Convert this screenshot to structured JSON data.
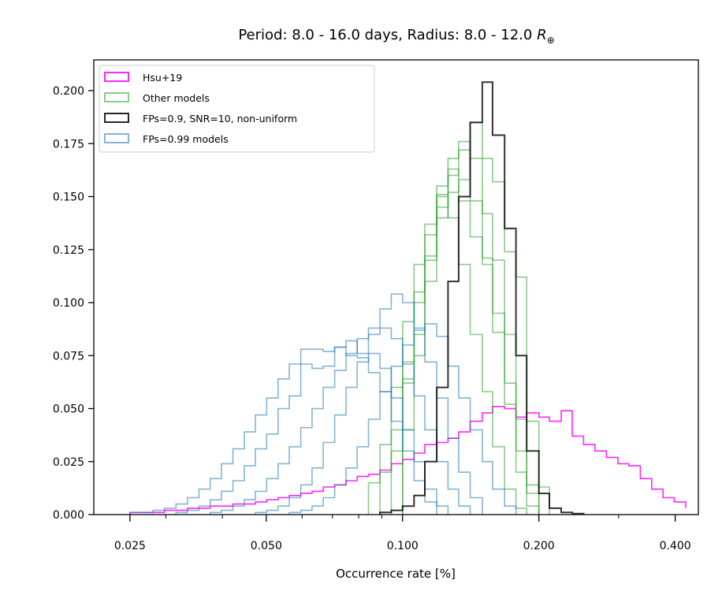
{
  "chart_data": {
    "type": "histogram",
    "title_main": "Period: 8.0 - 16.0 days, Radius: 8.0 - 12.0",
    "title_symbol": "R",
    "title_subscript": "⊕",
    "xlabel": "Occurrence rate [%]",
    "ylabel": "",
    "xscale": "log",
    "xlim": [
      0.0208,
      0.45
    ],
    "ylim": [
      0.0,
      0.2145
    ],
    "xticks": [
      0.025,
      0.05,
      0.1,
      0.2,
      0.4
    ],
    "xtick_labels": [
      "0.025",
      "0.050",
      "0.100",
      "0.200",
      "0.400"
    ],
    "yticks": [
      0.0,
      0.025,
      0.05,
      0.075,
      0.1,
      0.125,
      0.15,
      0.175,
      0.2
    ],
    "ytick_labels": [
      "0.000",
      "0.025",
      "0.050",
      "0.075",
      "0.100",
      "0.125",
      "0.150",
      "0.175",
      "0.200"
    ],
    "legend_position": "upper-left",
    "legend": [
      {
        "label": "Hsu+19",
        "color": "#ff00ff"
      },
      {
        "label": "Other models",
        "color": "#2ca02c"
      },
      {
        "label": "FPs=0.9, SNR=10, non-uniform",
        "color": "#000000"
      },
      {
        "label": "FPs=0.99 models",
        "color": "#1f77b4"
      }
    ],
    "series": [
      {
        "name": "Hsu+19",
        "color": "#ff00ff",
        "opacity": 0.85,
        "width": 1.6,
        "edges": [
          0.025,
          0.0265,
          0.0281,
          0.0298,
          0.0316,
          0.0335,
          0.0355,
          0.0376,
          0.0398,
          0.0422,
          0.0447,
          0.0473,
          0.0501,
          0.0531,
          0.0562,
          0.0596,
          0.0631,
          0.0668,
          0.0708,
          0.075,
          0.0794,
          0.0841,
          0.0891,
          0.0944,
          0.1,
          0.106,
          0.112,
          0.119,
          0.126,
          0.133,
          0.141,
          0.15,
          0.158,
          0.168,
          0.178,
          0.188,
          0.2,
          0.211,
          0.224,
          0.237,
          0.251,
          0.266,
          0.282,
          0.299,
          0.316,
          0.335,
          0.355,
          0.376,
          0.398,
          0.422
        ],
        "values": [
          0.001,
          0.001,
          0.001,
          0.002,
          0.002,
          0.003,
          0.003,
          0.004,
          0.004,
          0.005,
          0.005,
          0.006,
          0.007,
          0.008,
          0.009,
          0.01,
          0.011,
          0.013,
          0.014,
          0.016,
          0.018,
          0.019,
          0.021,
          0.024,
          0.026,
          0.029,
          0.033,
          0.034,
          0.036,
          0.039,
          0.044,
          0.048,
          0.051,
          0.05,
          0.046,
          0.048,
          0.046,
          0.044,
          0.049,
          0.037,
          0.033,
          0.03,
          0.027,
          0.024,
          0.023,
          0.017,
          0.012,
          0.008,
          0.006,
          0.003
        ]
      },
      {
        "name": "Other models",
        "color": "#2ca02c",
        "opacity": 0.55,
        "width": 1.6,
        "edges": [
          0.1,
          0.106,
          0.112,
          0.119,
          0.126,
          0.133,
          0.141,
          0.15,
          0.158,
          0.168,
          0.178,
          0.188,
          0.2,
          0.211
        ],
        "values": [
          0.062,
          0.085,
          0.12,
          0.145,
          0.152,
          0.158,
          0.185,
          0.168,
          0.157,
          0.124,
          0.112,
          0.044,
          0.013
        ]
      },
      {
        "name": "Other models",
        "color": "#2ca02c",
        "opacity": 0.55,
        "width": 1.6,
        "edges": [
          0.0891,
          0.0944,
          0.1,
          0.106,
          0.112,
          0.119,
          0.126,
          0.133,
          0.141,
          0.15,
          0.158,
          0.168,
          0.178,
          0.188,
          0.2
        ],
        "values": [
          0.02,
          0.04,
          0.072,
          0.105,
          0.132,
          0.151,
          0.168,
          0.172,
          0.148,
          0.121,
          0.095,
          0.052,
          0.02,
          0.004
        ]
      },
      {
        "name": "Other models",
        "color": "#2ca02c",
        "opacity": 0.55,
        "width": 1.6,
        "edges": [
          0.0944,
          0.1,
          0.106,
          0.112,
          0.119,
          0.126,
          0.133,
          0.141,
          0.15,
          0.158,
          0.168,
          0.178,
          0.188,
          0.2
        ],
        "values": [
          0.03,
          0.064,
          0.1,
          0.122,
          0.155,
          0.163,
          0.148,
          0.131,
          0.118,
          0.086,
          0.062,
          0.03,
          0.01
        ]
      },
      {
        "name": "Other models",
        "color": "#2ca02c",
        "opacity": 0.55,
        "width": 1.6,
        "edges": [
          0.0841,
          0.0891,
          0.0944,
          0.1,
          0.106,
          0.112,
          0.119,
          0.126,
          0.133,
          0.141,
          0.15,
          0.158,
          0.168,
          0.178,
          0.188
        ],
        "values": [
          0.015,
          0.033,
          0.06,
          0.091,
          0.118,
          0.137,
          0.15,
          0.14,
          0.118,
          0.085,
          0.058,
          0.032,
          0.012,
          0.003
        ]
      },
      {
        "name": "Other models",
        "color": "#2ca02c",
        "opacity": 0.55,
        "width": 1.6,
        "edges": [
          0.1,
          0.106,
          0.112,
          0.119,
          0.126,
          0.133,
          0.141,
          0.15,
          0.158,
          0.168,
          0.178,
          0.188,
          0.2
        ],
        "values": [
          0.04,
          0.075,
          0.11,
          0.14,
          0.16,
          0.176,
          0.168,
          0.142,
          0.12,
          0.085,
          0.045,
          0.014
        ]
      },
      {
        "name": "FPs=0.99 models",
        "color": "#1f77b4",
        "opacity": 0.55,
        "width": 1.6,
        "edges": [
          0.025,
          0.0265,
          0.0281,
          0.0298,
          0.0316,
          0.0335,
          0.0355,
          0.0376,
          0.0398,
          0.0422,
          0.0447,
          0.0473,
          0.0501,
          0.0531,
          0.0562,
          0.0596,
          0.0631,
          0.0668,
          0.0708,
          0.075,
          0.0794,
          0.0841,
          0.0891,
          0.0944,
          0.1,
          0.106,
          0.112,
          0.119
        ],
        "values": [
          0.001,
          0.001,
          0.002,
          0.003,
          0.005,
          0.008,
          0.012,
          0.017,
          0.024,
          0.031,
          0.039,
          0.047,
          0.055,
          0.064,
          0.071,
          0.078,
          0.078,
          0.077,
          0.079,
          0.075,
          0.074,
          0.067,
          0.058,
          0.044,
          0.03,
          0.016,
          0.006
        ]
      },
      {
        "name": "FPs=0.99 models",
        "color": "#1f77b4",
        "opacity": 0.55,
        "width": 1.6,
        "edges": [
          0.0316,
          0.0335,
          0.0355,
          0.0376,
          0.0398,
          0.0422,
          0.0447,
          0.0473,
          0.0501,
          0.0531,
          0.0562,
          0.0596,
          0.0631,
          0.0668,
          0.0708,
          0.075,
          0.0794,
          0.0841,
          0.0891,
          0.0944,
          0.1,
          0.106,
          0.112,
          0.119,
          0.126
        ],
        "values": [
          0.001,
          0.002,
          0.004,
          0.007,
          0.011,
          0.016,
          0.023,
          0.031,
          0.038,
          0.05,
          0.056,
          0.071,
          0.069,
          0.07,
          0.079,
          0.082,
          0.076,
          0.076,
          0.069,
          0.055,
          0.04,
          0.025,
          0.012,
          0.004
        ]
      },
      {
        "name": "FPs=0.99 models",
        "color": "#1f77b4",
        "opacity": 0.55,
        "width": 1.6,
        "edges": [
          0.0376,
          0.0398,
          0.0422,
          0.0447,
          0.0473,
          0.0501,
          0.0531,
          0.0562,
          0.0596,
          0.0631,
          0.0668,
          0.0708,
          0.075,
          0.0794,
          0.0841,
          0.0891,
          0.0944,
          0.1,
          0.106,
          0.112,
          0.119,
          0.126,
          0.133,
          0.141
        ],
        "values": [
          0.001,
          0.002,
          0.004,
          0.007,
          0.011,
          0.017,
          0.024,
          0.032,
          0.041,
          0.05,
          0.06,
          0.068,
          0.076,
          0.083,
          0.088,
          0.088,
          0.083,
          0.071,
          0.056,
          0.04,
          0.025,
          0.012,
          0.004
        ]
      },
      {
        "name": "FPs=0.99 models",
        "color": "#1f77b4",
        "opacity": 0.55,
        "width": 1.6,
        "edges": [
          0.0473,
          0.0501,
          0.0531,
          0.0562,
          0.0596,
          0.0631,
          0.0668,
          0.0708,
          0.075,
          0.0794,
          0.0841,
          0.0891,
          0.0944,
          0.1,
          0.106,
          0.112,
          0.119,
          0.126,
          0.133,
          0.141,
          0.15
        ],
        "values": [
          0.001,
          0.002,
          0.004,
          0.008,
          0.014,
          0.022,
          0.034,
          0.047,
          0.06,
          0.072,
          0.085,
          0.097,
          0.104,
          0.1,
          0.088,
          0.072,
          0.055,
          0.036,
          0.02,
          0.008
        ]
      },
      {
        "name": "FPs=0.99 models",
        "color": "#1f77b4",
        "opacity": 0.55,
        "width": 1.6,
        "edges": [
          0.0562,
          0.0596,
          0.0631,
          0.0668,
          0.0708,
          0.075,
          0.0794,
          0.0841,
          0.0891,
          0.0944,
          0.1,
          0.106,
          0.112,
          0.119,
          0.126,
          0.133,
          0.141,
          0.15,
          0.158,
          0.168,
          0.178
        ],
        "values": [
          0.001,
          0.002,
          0.004,
          0.008,
          0.014,
          0.022,
          0.032,
          0.045,
          0.058,
          0.07,
          0.08,
          0.087,
          0.09,
          0.084,
          0.07,
          0.055,
          0.04,
          0.025,
          0.012,
          0.004
        ]
      },
      {
        "name": "FPs=0.9, SNR=10, non-uniform",
        "color": "#000000",
        "opacity": 0.8,
        "width": 2.0,
        "edges": [
          0.0891,
          0.0944,
          0.1,
          0.106,
          0.112,
          0.119,
          0.126,
          0.133,
          0.141,
          0.15,
          0.158,
          0.168,
          0.178,
          0.188,
          0.2,
          0.211,
          0.224,
          0.237,
          0.251
        ],
        "values": [
          0.001,
          0.002,
          0.004,
          0.009,
          0.025,
          0.06,
          0.11,
          0.15,
          0.185,
          0.204,
          0.179,
          0.135,
          0.075,
          0.03,
          0.01,
          0.003,
          0.001,
          0.0005
        ]
      }
    ]
  }
}
